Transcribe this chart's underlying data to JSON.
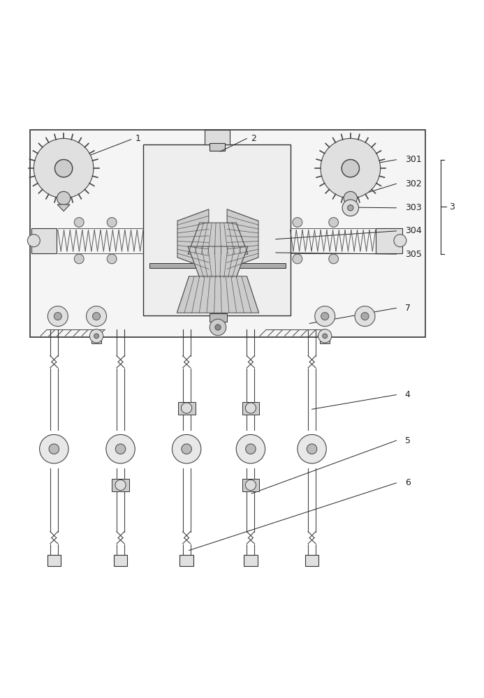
{
  "bg_color": "#ffffff",
  "line_color": "#333333",
  "label_color": "#222222",
  "fig_width": 6.93,
  "fig_height": 10.0
}
